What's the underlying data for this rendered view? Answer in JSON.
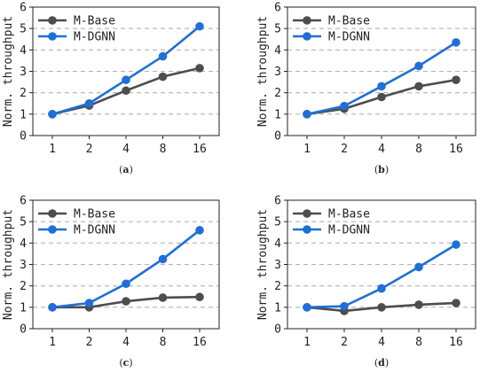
{
  "chart_data": [
    {
      "type": "line",
      "caption_prefix": "(",
      "caption_letter": "a",
      "caption_suffix": ")",
      "x": [
        "1",
        "2",
        "4",
        "8",
        "16"
      ],
      "ylabel": "Norm. throughput",
      "ylim": [
        0,
        6
      ],
      "yticks": [
        "0",
        "1",
        "2",
        "3",
        "4",
        "5",
        "6"
      ],
      "grid": "horizontal dashed",
      "legend_position": "top-left",
      "series": [
        {
          "name": "M-Base",
          "color": "#4d4d4d",
          "values": [
            1.0,
            1.4,
            2.1,
            2.75,
            3.15
          ]
        },
        {
          "name": "M-DGNN",
          "color": "#1f6fd6",
          "values": [
            1.0,
            1.5,
            2.6,
            3.7,
            5.1
          ]
        }
      ]
    },
    {
      "type": "line",
      "caption_prefix": "(",
      "caption_letter": "b",
      "caption_suffix": ")",
      "x": [
        "1",
        "2",
        "4",
        "8",
        "16"
      ],
      "ylabel": "Norm. throughput",
      "ylim": [
        0,
        6
      ],
      "yticks": [
        "0",
        "1",
        "2",
        "3",
        "4",
        "5",
        "6"
      ],
      "grid": "horizontal dashed",
      "legend_position": "top-left",
      "series": [
        {
          "name": "M-Base",
          "color": "#4d4d4d",
          "values": [
            1.0,
            1.25,
            1.8,
            2.3,
            2.6
          ]
        },
        {
          "name": "M-DGNN",
          "color": "#1f6fd6",
          "values": [
            1.0,
            1.38,
            2.3,
            3.25,
            4.35
          ]
        }
      ]
    },
    {
      "type": "line",
      "caption_prefix": "(",
      "caption_letter": "c",
      "caption_suffix": ")",
      "x": [
        "1",
        "2",
        "4",
        "8",
        "16"
      ],
      "ylabel": "Norm. throughput",
      "ylim": [
        0,
        6
      ],
      "yticks": [
        "0",
        "1",
        "2",
        "3",
        "4",
        "5",
        "6"
      ],
      "grid": "horizontal dashed",
      "legend_position": "top-left",
      "series": [
        {
          "name": "M-Base",
          "color": "#4d4d4d",
          "values": [
            1.0,
            1.0,
            1.28,
            1.45,
            1.48
          ]
        },
        {
          "name": "M-DGNN",
          "color": "#1f6fd6",
          "values": [
            1.0,
            1.2,
            2.1,
            3.25,
            4.6
          ]
        }
      ]
    },
    {
      "type": "line",
      "caption_prefix": "(",
      "caption_letter": "d",
      "caption_suffix": ")",
      "x": [
        "1",
        "2",
        "4",
        "8",
        "16"
      ],
      "ylabel": "Norm. throughput",
      "ylim": [
        0,
        6
      ],
      "yticks": [
        "0",
        "1",
        "2",
        "3",
        "4",
        "5",
        "6"
      ],
      "grid": "horizontal dashed",
      "legend_position": "top-left",
      "series": [
        {
          "name": "M-Base",
          "color": "#4d4d4d",
          "values": [
            1.0,
            0.83,
            1.0,
            1.12,
            1.2
          ]
        },
        {
          "name": "M-DGNN",
          "color": "#1f6fd6",
          "values": [
            1.0,
            1.05,
            1.88,
            2.88,
            3.93
          ]
        }
      ]
    }
  ]
}
